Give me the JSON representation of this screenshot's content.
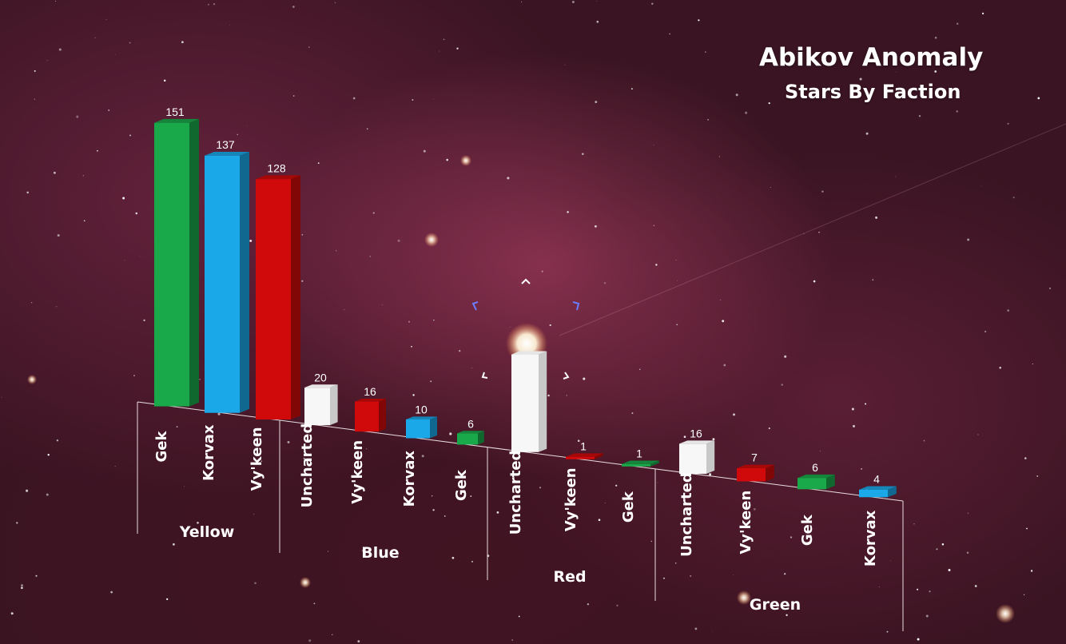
{
  "title": "Abikov Anomaly",
  "subtitle": "Stars By Faction",
  "colors": {
    "Gek": "#19a84a",
    "Korvax": "#1aa8e8",
    "Vy'keen": "#d00a0a",
    "Uncharted": "#ffffff"
  },
  "chart_data": {
    "type": "bar",
    "title": "Abikov Anomaly",
    "subtitle": "Stars By Faction",
    "xlabel": "",
    "ylabel": "",
    "grid": false,
    "legend": "none",
    "groups": [
      {
        "name": "Yellow",
        "bars": [
          {
            "category": "Gek",
            "value": 151
          },
          {
            "category": "Korvax",
            "value": 137
          },
          {
            "category": "Vy'keen",
            "value": 128
          }
        ]
      },
      {
        "name": "Blue",
        "bars": [
          {
            "category": "Uncharted",
            "value": 20
          },
          {
            "category": "Vy'keen",
            "value": 16
          },
          {
            "category": "Korvax",
            "value": 10
          },
          {
            "category": "Gek",
            "value": 6
          }
        ]
      },
      {
        "name": "Red",
        "bars": [
          {
            "category": "Uncharted",
            "value": 52
          },
          {
            "category": "Vy'keen",
            "value": 1
          },
          {
            "category": "Gek",
            "value": 1
          }
        ]
      },
      {
        "name": "Green",
        "bars": [
          {
            "category": "Uncharted",
            "value": 16
          },
          {
            "category": "Vy'keen",
            "value": 7
          },
          {
            "category": "Gek",
            "value": 6
          },
          {
            "category": "Korvax",
            "value": 4
          }
        ]
      }
    ],
    "hidden_value_labels": [
      "Red:Uncharted"
    ]
  }
}
